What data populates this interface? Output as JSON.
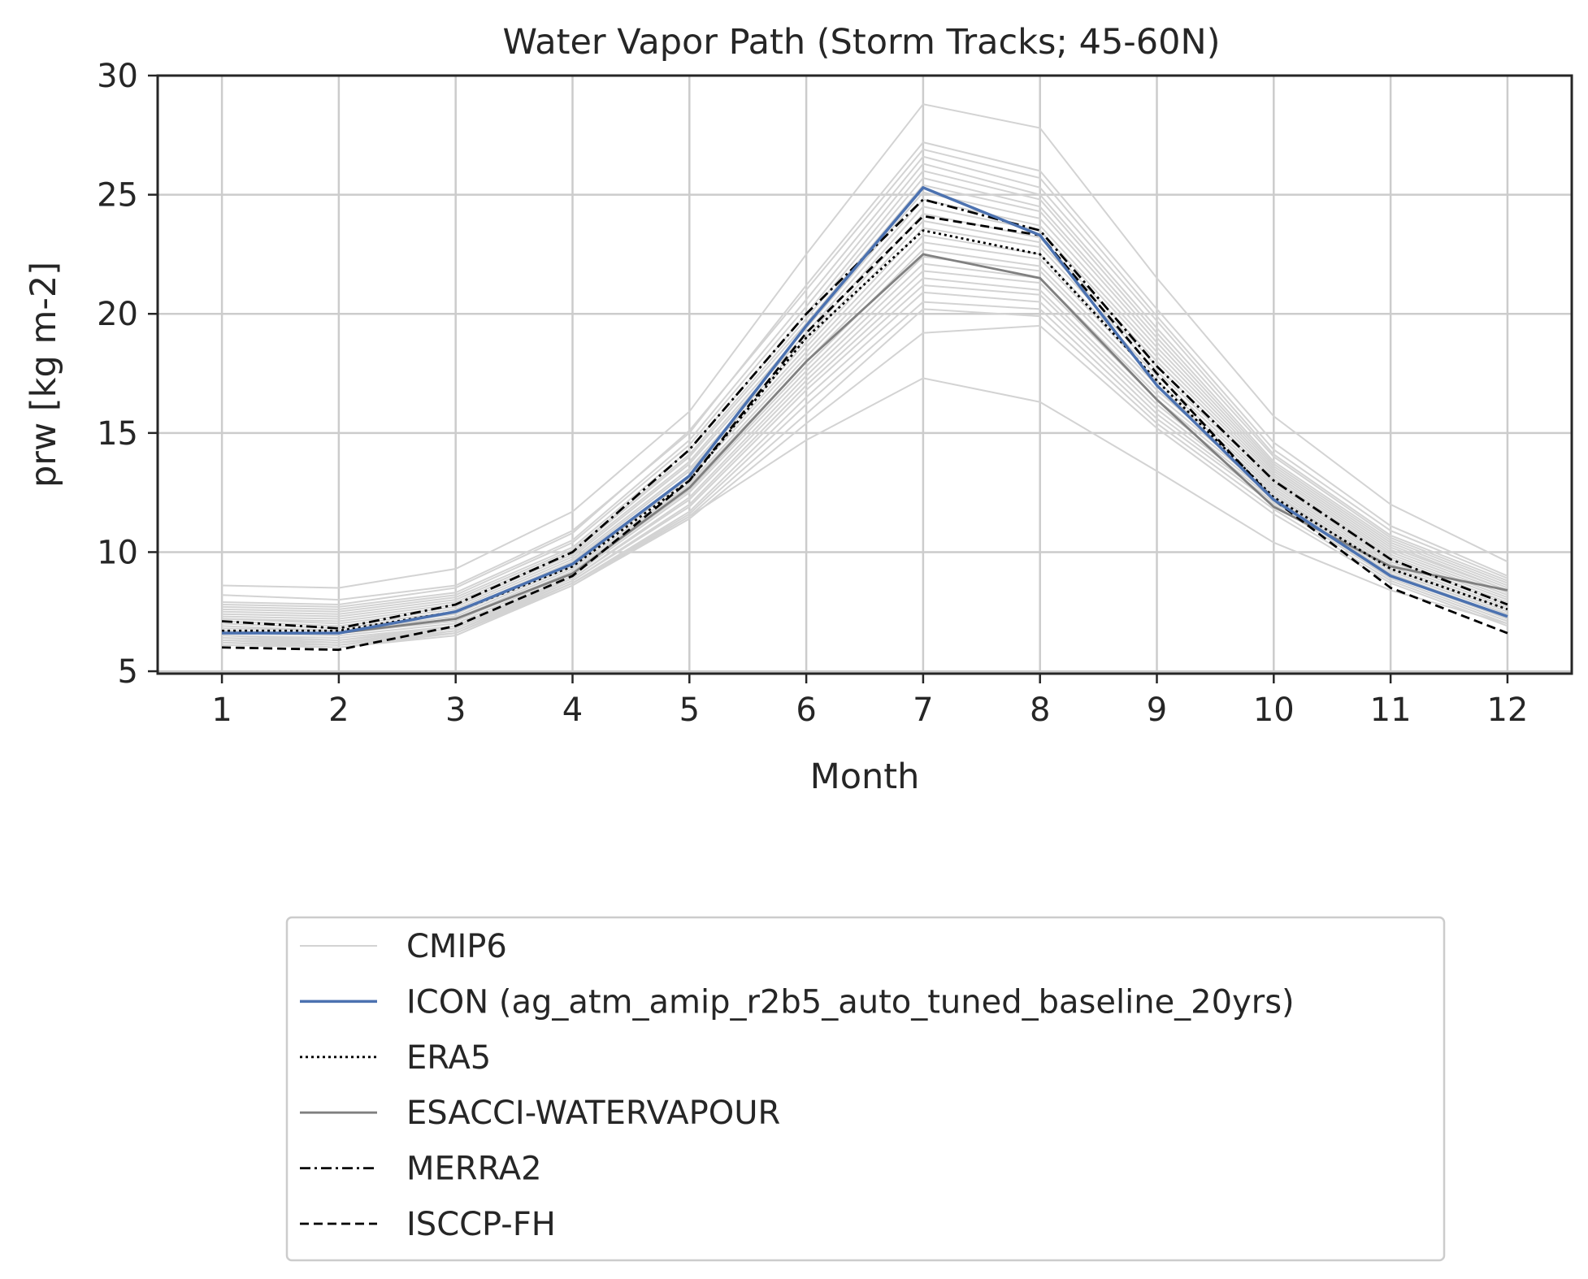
{
  "chart_data": {
    "type": "line",
    "title": "Water Vapor Path (Storm Tracks; 45-60N)",
    "xlabel": "Month",
    "ylabel": "prw [kg m-2]",
    "x": [
      1,
      2,
      3,
      4,
      5,
      6,
      7,
      8,
      9,
      10,
      11,
      12
    ],
    "xticks": [
      "1",
      "2",
      "3",
      "4",
      "5",
      "6",
      "7",
      "8",
      "9",
      "10",
      "11",
      "12"
    ],
    "xlim": [
      0.45,
      12.55
    ],
    "yticks": [
      "5",
      "10",
      "15",
      "20",
      "25",
      "30"
    ],
    "ylim": [
      4.9,
      30
    ],
    "grid": true,
    "legend_position": "below",
    "ensemble": {
      "name": "CMIP6",
      "color": "#d3d3d3",
      "members": [
        [
          8.6,
          8.5,
          9.3,
          11.7,
          15.9,
          22.5,
          28.8,
          27.8,
          21.5,
          15.7,
          12.0,
          9.6
        ],
        [
          8.2,
          8.0,
          8.6,
          10.9,
          15.0,
          21.2,
          27.2,
          26.0,
          20.2,
          14.6,
          11.1,
          9.0
        ],
        [
          7.9,
          7.8,
          8.5,
          10.8,
          15.1,
          21.0,
          26.9,
          25.7,
          19.9,
          14.3,
          10.9,
          8.9
        ],
        [
          7.8,
          7.7,
          8.3,
          10.5,
          14.7,
          20.6,
          26.6,
          25.3,
          19.7,
          14.1,
          10.7,
          8.8
        ],
        [
          7.7,
          7.6,
          8.2,
          10.4,
          14.5,
          20.3,
          26.3,
          25.0,
          19.4,
          14.0,
          10.6,
          8.7
        ],
        [
          7.6,
          7.5,
          8.1,
          10.2,
          14.3,
          20.0,
          26.0,
          24.8,
          19.2,
          13.8,
          10.5,
          8.6
        ],
        [
          7.5,
          7.4,
          8.0,
          10.1,
          14.1,
          19.8,
          25.7,
          24.5,
          19.0,
          13.7,
          10.4,
          8.5
        ],
        [
          7.4,
          7.3,
          7.9,
          10.0,
          14.0,
          19.6,
          25.4,
          24.3,
          18.8,
          13.6,
          10.3,
          8.4
        ],
        [
          7.3,
          7.2,
          7.8,
          9.9,
          13.8,
          19.4,
          25.1,
          24.0,
          18.6,
          13.5,
          10.2,
          8.4
        ],
        [
          7.2,
          7.1,
          7.7,
          9.8,
          13.7,
          19.2,
          24.8,
          23.7,
          18.4,
          13.4,
          10.1,
          8.3
        ],
        [
          7.2,
          7.0,
          7.6,
          9.7,
          13.5,
          19.0,
          24.5,
          23.5,
          18.2,
          13.3,
          10.0,
          8.2
        ],
        [
          7.1,
          6.9,
          7.5,
          9.6,
          13.4,
          18.8,
          24.2,
          23.2,
          18.0,
          13.2,
          9.9,
          8.1
        ],
        [
          7.0,
          6.8,
          7.4,
          9.5,
          13.2,
          18.6,
          23.9,
          23.0,
          17.8,
          13.1,
          9.8,
          8.0
        ],
        [
          6.9,
          6.7,
          7.3,
          9.4,
          13.1,
          18.4,
          23.6,
          22.8,
          17.6,
          13.0,
          9.7,
          7.9
        ],
        [
          6.8,
          6.7,
          7.2,
          9.3,
          12.9,
          18.2,
          23.3,
          22.5,
          17.4,
          12.9,
          9.6,
          7.8
        ],
        [
          6.7,
          6.6,
          7.1,
          9.2,
          12.8,
          18.0,
          23.0,
          22.3,
          17.2,
          12.8,
          9.5,
          7.7
        ],
        [
          6.6,
          6.5,
          7.0,
          9.1,
          12.6,
          17.8,
          22.7,
          22.0,
          17.0,
          12.7,
          9.4,
          7.6
        ],
        [
          6.5,
          6.4,
          6.9,
          9.0,
          12.5,
          17.6,
          22.4,
          21.8,
          16.8,
          12.6,
          9.3,
          7.5
        ],
        [
          6.5,
          6.3,
          6.9,
          8.9,
          12.3,
          17.4,
          22.1,
          21.5,
          16.6,
          12.5,
          9.2,
          7.4
        ],
        [
          6.4,
          6.3,
          6.8,
          8.9,
          12.2,
          17.2,
          21.8,
          21.3,
          16.4,
          12.4,
          9.2,
          7.4
        ],
        [
          6.4,
          6.2,
          6.8,
          8.8,
          12.0,
          17.0,
          21.5,
          21.0,
          16.2,
          12.3,
          9.1,
          7.3
        ],
        [
          6.3,
          6.2,
          6.7,
          8.8,
          11.9,
          16.8,
          21.2,
          20.8,
          16.0,
          12.2,
          9.0,
          7.2
        ],
        [
          6.3,
          6.1,
          6.7,
          8.7,
          11.7,
          16.5,
          20.9,
          20.5,
          15.8,
          12.1,
          9.0,
          7.2
        ],
        [
          6.2,
          6.1,
          6.6,
          8.7,
          11.6,
          16.2,
          20.5,
          20.2,
          15.6,
          12.0,
          8.9,
          7.1
        ],
        [
          6.2,
          6.0,
          6.6,
          8.6,
          11.5,
          15.8,
          20.2,
          19.9,
          15.4,
          11.8,
          8.8,
          7.0
        ],
        [
          6.1,
          6.0,
          6.5,
          8.6,
          11.4,
          15.4,
          19.2,
          19.5,
          15.2,
          11.6,
          8.7,
          6.9
        ],
        [
          6.3,
          6.2,
          6.6,
          8.7,
          11.5,
          14.7,
          17.3,
          16.3,
          13.4,
          10.4,
          8.4,
          7.0
        ]
      ]
    },
    "series": [
      {
        "name": "ICON (ag_atm_amip_r2b5_auto_tuned_baseline_20yrs)",
        "color": "#4c72b0",
        "dash": "solid",
        "values": [
          6.6,
          6.6,
          7.5,
          9.5,
          13.2,
          19.5,
          25.3,
          23.3,
          17.0,
          12.2,
          9.0,
          7.3
        ]
      },
      {
        "name": "ERA5",
        "color": "#000000",
        "dash": "dotted",
        "values": [
          6.7,
          6.7,
          7.5,
          9.4,
          13.0,
          19.0,
          23.5,
          22.5,
          17.2,
          12.3,
          9.3,
          7.6
        ]
      },
      {
        "name": "ESACCI-WATERVAPOUR",
        "color": "#808080",
        "dash": "solid",
        "values": [
          6.6,
          6.6,
          7.2,
          9.1,
          12.7,
          18.0,
          22.5,
          21.5,
          16.4,
          11.9,
          9.4,
          8.4
        ]
      },
      {
        "name": "MERRA2",
        "color": "#000000",
        "dash": "dashdot",
        "values": [
          7.1,
          6.8,
          7.8,
          10.0,
          14.3,
          20.0,
          24.8,
          23.5,
          17.8,
          13.0,
          9.7,
          7.8
        ]
      },
      {
        "name": "ISCCP-FH",
        "color": "#000000",
        "dash": "dashed",
        "values": [
          6.0,
          5.9,
          6.9,
          9.0,
          13.0,
          19.2,
          24.1,
          23.3,
          17.5,
          12.2,
          8.5,
          6.6
        ]
      }
    ]
  }
}
